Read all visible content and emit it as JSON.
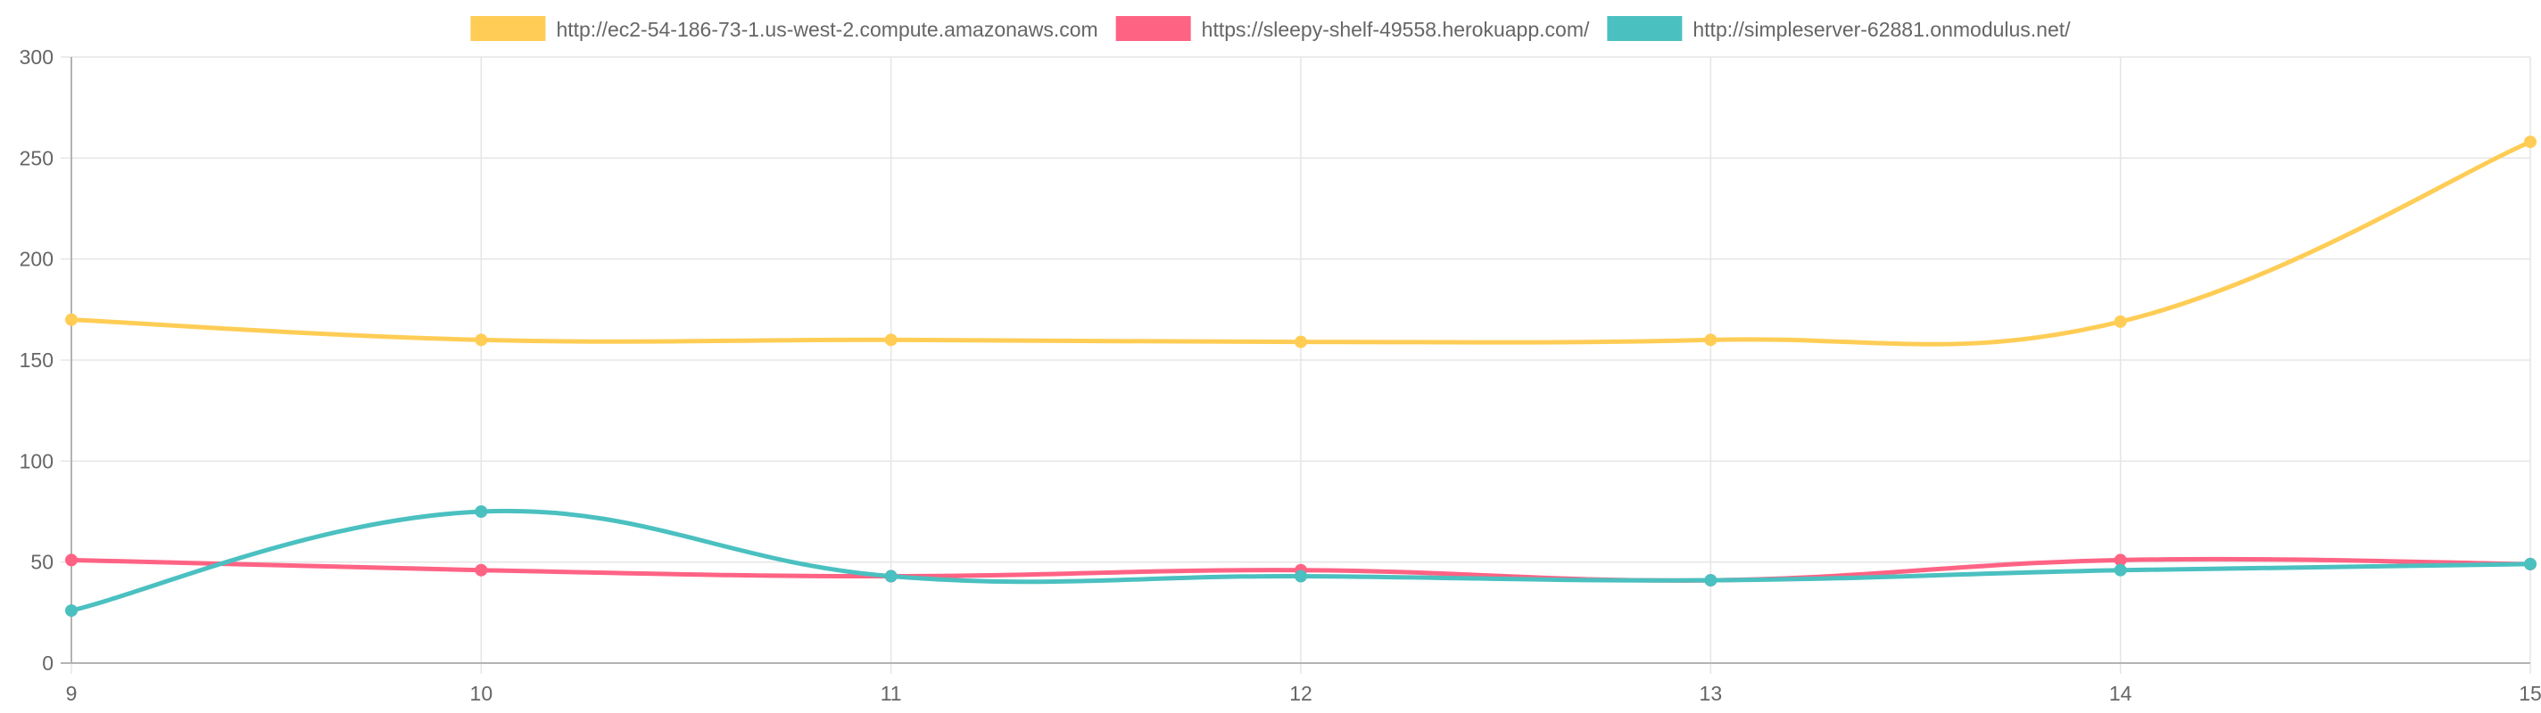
{
  "chart_data": {
    "type": "line",
    "title": "",
    "xlabel": "",
    "ylabel": "",
    "x": [
      9,
      10,
      11,
      12,
      13,
      14,
      15
    ],
    "xlim": [
      9,
      15
    ],
    "ylim": [
      0,
      300
    ],
    "y_ticks": [
      0,
      50,
      100,
      150,
      200,
      250,
      300
    ],
    "grid": true,
    "legend_position": "top-center",
    "series": [
      {
        "name": "http://ec2-54-186-73-1.us-west-2.compute.amazonaws.com",
        "color": "#ffcd56",
        "values": [
          170,
          160,
          160,
          159,
          160,
          169,
          258
        ]
      },
      {
        "name": "https://sleepy-shelf-49558.herokuapp.com/",
        "color": "#ff6384",
        "values": [
          51,
          46,
          43,
          46,
          41,
          51,
          49
        ]
      },
      {
        "name": "http://simpleserver-62881.onmodulus.net/",
        "color": "#4bc0c0",
        "values": [
          26,
          75,
          43,
          43,
          41,
          46,
          49
        ]
      }
    ]
  }
}
